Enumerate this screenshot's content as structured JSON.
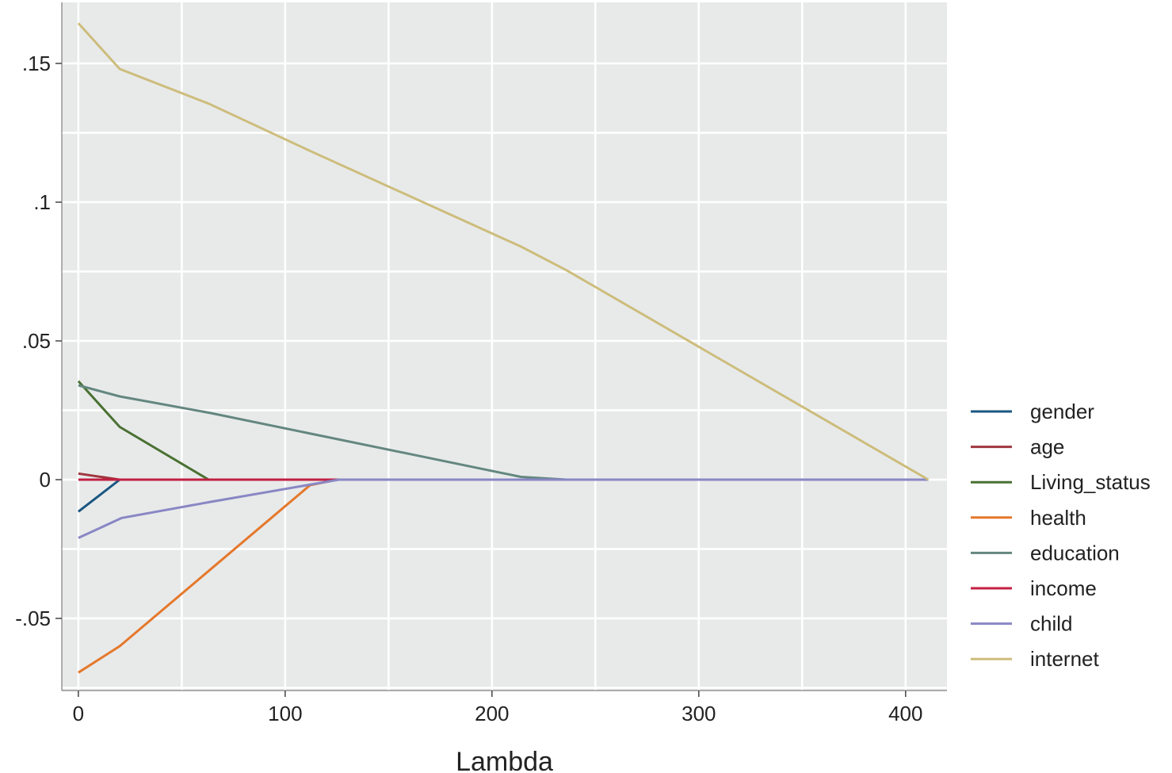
{
  "chart_data": {
    "type": "line",
    "title": "",
    "xlabel": "Lambda",
    "ylabel": "",
    "xlim": [
      -8,
      420
    ],
    "ylim": [
      -0.076,
      0.172
    ],
    "x_ticks": [
      0,
      100,
      200,
      300,
      400
    ],
    "x_tick_labels": [
      "0",
      "100",
      "200",
      "300",
      "400"
    ],
    "y_ticks": [
      -0.05,
      0,
      0.05,
      0.1,
      0.15
    ],
    "y_tick_labels": [
      "-.05",
      "0",
      ".05",
      ".1",
      ".15"
    ],
    "grid": true,
    "legend_position": "right",
    "series": [
      {
        "name": "gender",
        "color": "#1a5681",
        "x": [
          0,
          20,
          411
        ],
        "y": [
          -0.0115,
          0.0,
          0.0
        ]
      },
      {
        "name": "age",
        "color": "#a0363f",
        "x": [
          0,
          20,
          411
        ],
        "y": [
          0.0022,
          0.0,
          0.0
        ]
      },
      {
        "name": "Living_status",
        "color": "#4a7132",
        "x": [
          0,
          20,
          63,
          411
        ],
        "y": [
          0.0355,
          0.019,
          0.0,
          0.0
        ]
      },
      {
        "name": "health",
        "color": "#e5782b",
        "x": [
          0,
          20,
          112,
          125,
          411
        ],
        "y": [
          -0.0695,
          -0.06,
          -0.002,
          0.0,
          0.0
        ]
      },
      {
        "name": "education",
        "color": "#64877f",
        "x": [
          0,
          20,
          64,
          214,
          236,
          411
        ],
        "y": [
          0.034,
          0.03,
          0.024,
          0.001,
          0.0,
          0.0
        ]
      },
      {
        "name": "income",
        "color": "#c21f42",
        "x": [
          0,
          411
        ],
        "y": [
          0.0,
          0.0
        ]
      },
      {
        "name": "child",
        "color": "#8987c4",
        "x": [
          0,
          21,
          64,
          126,
          411
        ],
        "y": [
          -0.021,
          -0.0138,
          -0.008,
          0.0,
          0.0
        ]
      },
      {
        "name": "internet",
        "color": "#cdbd7c",
        "x": [
          0,
          20,
          63,
          112,
          214,
          236,
          411
        ],
        "y": [
          0.1645,
          0.148,
          0.1355,
          0.1185,
          0.084,
          0.0755,
          0.0
        ]
      }
    ]
  }
}
